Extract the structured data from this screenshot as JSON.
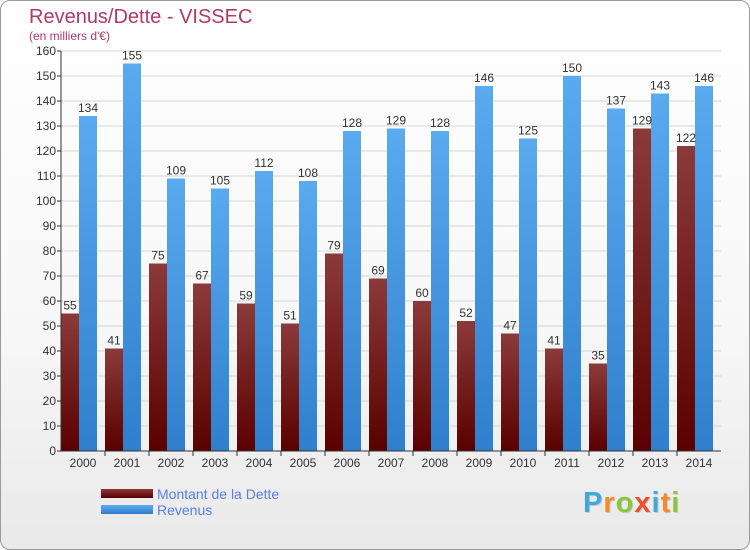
{
  "chart_title": "Revenus/Dette - VISSEC",
  "chart_subtitle": "(en milliers d'€)",
  "logo": {
    "letters": [
      "P",
      "r",
      "o",
      "x",
      "i",
      "t",
      "i"
    ],
    "colors": [
      "#3fa9dd",
      "#f28c28",
      "#8cc63f",
      "#e8502e",
      "#3fa9dd",
      "#f28c28",
      "#8cc63f"
    ]
  },
  "colors": {
    "dette_top": "#8b3a3a",
    "dette_bottom": "#5a0000",
    "revenus_top": "#5aaaf0",
    "revenus_bottom": "#2f7fcc",
    "title": "#b03a66",
    "legend_text": "#5b7fe0"
  },
  "chart_data": {
    "type": "bar",
    "categories": [
      "2000",
      "2001",
      "2002",
      "2003",
      "2004",
      "2005",
      "2006",
      "2007",
      "2008",
      "2009",
      "2010",
      "2011",
      "2012",
      "2013",
      "2014"
    ],
    "series": [
      {
        "name": "Montant de la Dette",
        "values": [
          55,
          41,
          75,
          67,
          59,
          51,
          79,
          69,
          60,
          52,
          47,
          41,
          35,
          129,
          122
        ]
      },
      {
        "name": "Revenus",
        "values": [
          134,
          155,
          109,
          105,
          112,
          108,
          128,
          129,
          128,
          146,
          125,
          150,
          137,
          143,
          146
        ]
      }
    ],
    "ylim": [
      0,
      160
    ],
    "ytick_step": 10,
    "grid": true,
    "data_labels": true,
    "legend_placement": "bottom-left"
  }
}
